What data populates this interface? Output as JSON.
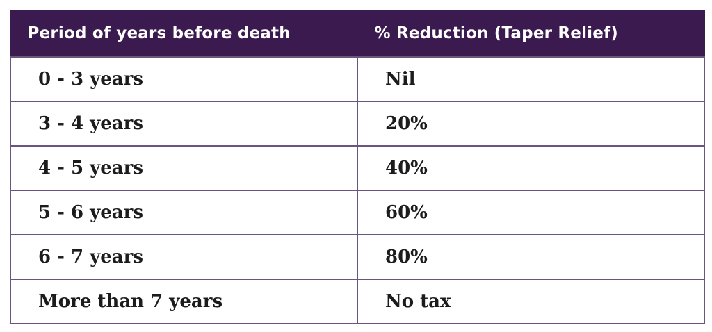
{
  "table": {
    "headers": [
      "Period of years before death",
      "% Reduction (Taper Relief)"
    ],
    "rows": [
      [
        "0 - 3 years",
        "Nil"
      ],
      [
        "3 - 4 years",
        "20%"
      ],
      [
        "4 - 5 years",
        "40%"
      ],
      [
        "5 - 6 years",
        "60%"
      ],
      [
        "6 - 7 years",
        "80%"
      ],
      [
        "More than 7 years",
        "No tax"
      ]
    ]
  },
  "colors": {
    "header_bg": "#3b1a4f",
    "header_text": "#ffffff",
    "border": "#6a5580",
    "cell_text": "#1c1c1c"
  }
}
